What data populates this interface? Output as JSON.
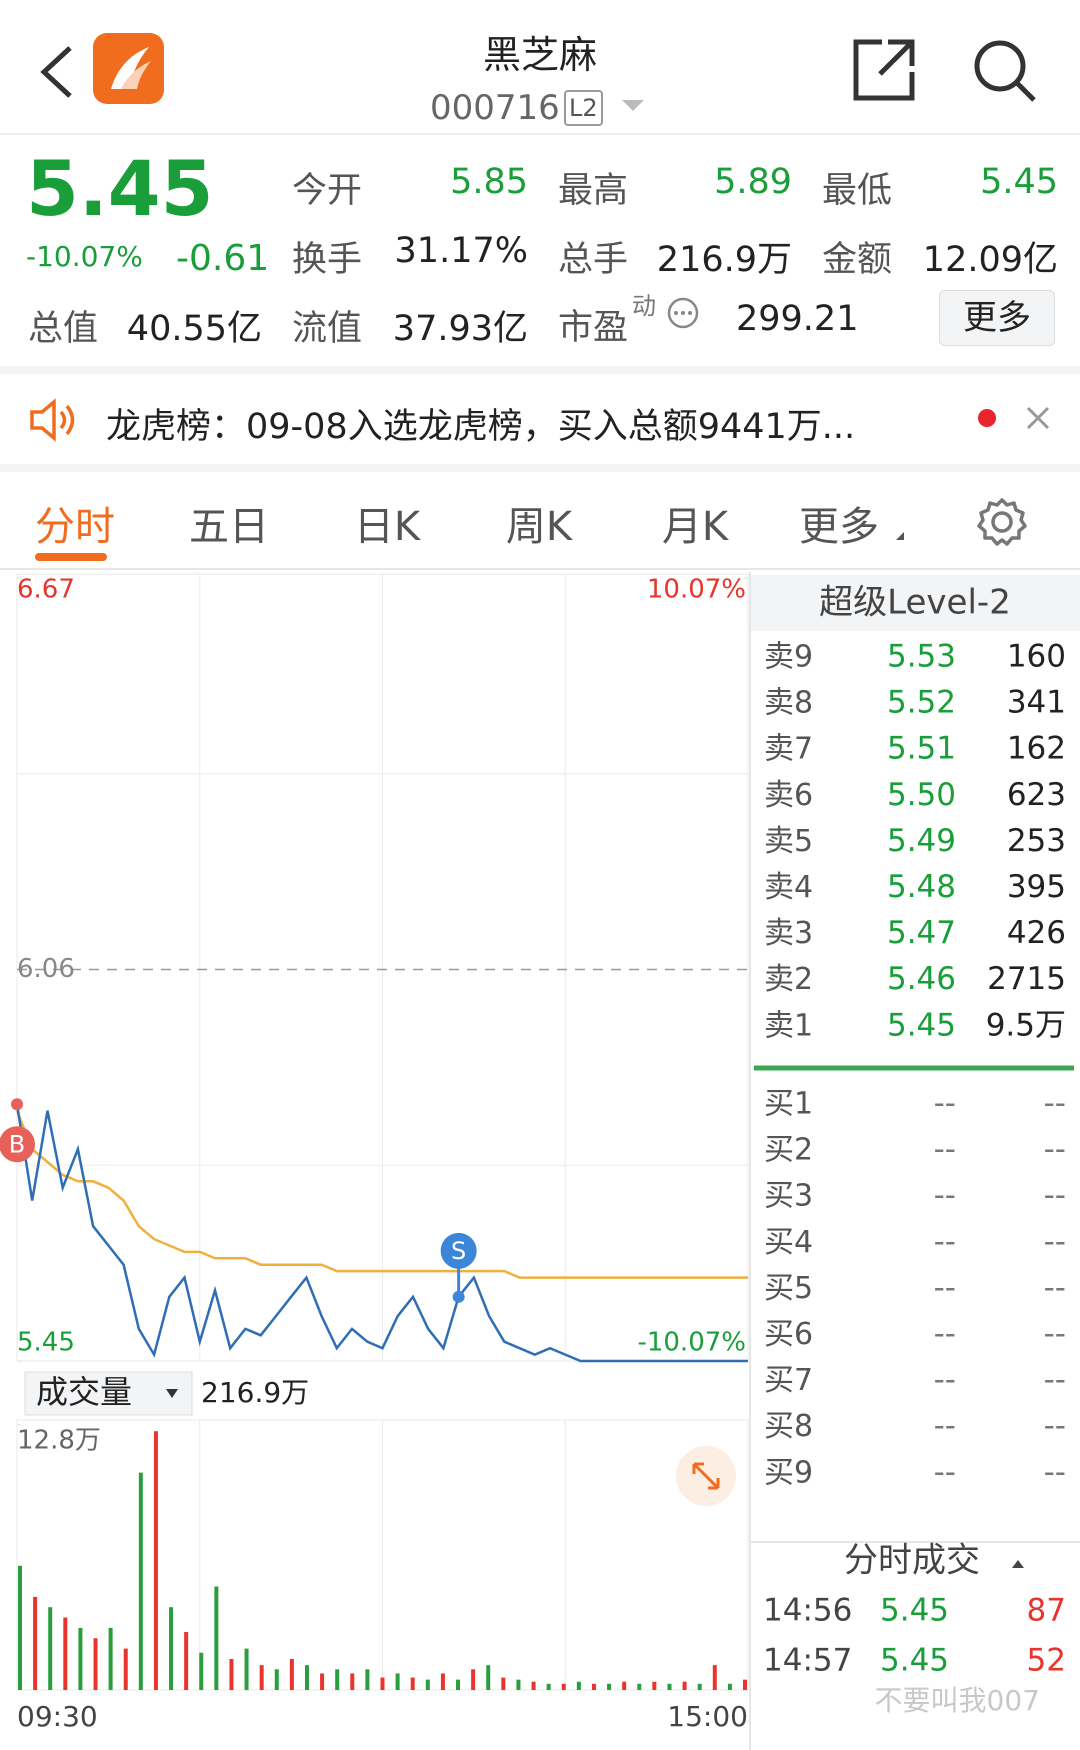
{
  "header": {
    "title": "黑芝麻",
    "code": "000716",
    "badge": "L2"
  },
  "quote": {
    "price": "5.45",
    "change_pct": "-10.07%",
    "change": "-0.61",
    "stats": [
      {
        "label": "今开",
        "value": "5.85"
      },
      {
        "label": "最高",
        "value": "5.89"
      },
      {
        "label": "最低",
        "value": "5.45"
      },
      {
        "label": "换手",
        "value": "31.17%"
      },
      {
        "label": "总手",
        "value": "216.9万"
      },
      {
        "label": "金额",
        "value": "12.09亿"
      },
      {
        "label": "总值",
        "value": "40.55亿"
      },
      {
        "label": "流值",
        "value": "37.93亿"
      }
    ],
    "pe": {
      "label": "市盈",
      "note": "动",
      "value": "299.21"
    },
    "more": "更多"
  },
  "notice": {
    "text": "龙虎榜：09-08入选龙虎榜，买入总额9441万..."
  },
  "tabs": [
    "分时",
    "五日",
    "日K",
    "周K",
    "月K",
    "更多"
  ],
  "chart_data": [
    {
      "type": "line",
      "series": [
        {
          "color": "#2f6db5",
          "values": [
            5.85,
            5.7,
            5.84,
            5.72,
            5.78,
            5.66,
            5.63,
            5.6,
            5.5,
            5.46,
            5.55,
            5.58,
            5.48,
            5.56,
            5.47,
            5.5,
            5.49,
            5.52,
            5.55,
            5.58,
            5.52,
            5.47,
            5.5,
            5.48,
            5.47,
            5.52,
            5.55,
            5.5,
            5.47,
            5.55,
            5.58,
            5.52,
            5.48,
            5.47,
            5.46,
            5.47,
            5.46,
            5.45,
            5.45,
            5.45,
            5.45,
            5.45,
            5.45,
            5.45,
            5.45,
            5.45,
            5.45,
            5.45,
            5.45
          ]
        },
        {
          "color": "#f0b13c",
          "values": [
            5.84,
            5.78,
            5.76,
            5.74,
            5.73,
            5.73,
            5.72,
            5.7,
            5.66,
            5.64,
            5.63,
            5.62,
            5.62,
            5.61,
            5.61,
            5.61,
            5.6,
            5.6,
            5.6,
            5.6,
            5.6,
            5.59,
            5.59,
            5.59,
            5.59,
            5.59,
            5.59,
            5.59,
            5.59,
            5.59,
            5.59,
            5.59,
            5.59,
            5.58,
            5.58,
            5.58,
            5.58,
            5.58,
            5.58,
            5.58,
            5.58,
            5.58,
            5.58,
            5.58,
            5.58,
            5.58,
            5.58,
            5.58,
            5.58
          ]
        }
      ],
      "ylim": [
        5.45,
        6.67
      ],
      "yticks": [
        6.67,
        6.06,
        5.45
      ],
      "y2lim": [
        -10.07,
        10.07
      ],
      "y2ticks": [
        {
          "value": 10.07,
          "label": "10.07%"
        },
        {
          "value": -10.07,
          "label": "-10.07%"
        }
      ],
      "annotations": [
        "B",
        "S"
      ]
    },
    {
      "type": "bar",
      "selector": "成交量",
      "total": "216.9万",
      "values": [
        60000,
        45000,
        40000,
        35000,
        30000,
        25000,
        30000,
        20000,
        105000,
        125000,
        40000,
        28000,
        18000,
        50000,
        15000,
        20000,
        12000,
        10000,
        15000,
        12000,
        8000,
        10000,
        8000,
        10000,
        6000,
        8000,
        6000,
        5000,
        8000,
        5000,
        10000,
        12000,
        6000,
        5000,
        4000,
        3000,
        3000,
        4000,
        3000,
        3000,
        4000,
        3000,
        4000,
        3000,
        4000,
        3000,
        12000,
        3000,
        5000
      ],
      "colors": [
        "#2a9d3f",
        "#e8342c",
        "#2a9d3f",
        "#e8342c",
        "#2a9d3f",
        "#e8342c",
        "#2a9d3f",
        "#e8342c",
        "#2a9d3f",
        "#e8342c",
        "#2a9d3f",
        "#e8342c",
        "#2a9d3f",
        "#2a9d3f",
        "#e8342c",
        "#2a9d3f",
        "#e8342c",
        "#2a9d3f",
        "#e8342c",
        "#2a9d3f",
        "#e8342c",
        "#2a9d3f",
        "#e8342c",
        "#2a9d3f",
        "#e8342c",
        "#2a9d3f",
        "#e8342c",
        "#2a9d3f",
        "#e8342c",
        "#2a9d3f",
        "#e8342c",
        "#2a9d3f",
        "#e8342c",
        "#2a9d3f",
        "#e8342c",
        "#2a9d3f",
        "#e8342c",
        "#2a9d3f",
        "#e8342c",
        "#2a9d3f",
        "#e8342c",
        "#2a9d3f",
        "#e8342c",
        "#2a9d3f",
        "#e8342c",
        "#2a9d3f",
        "#e8342c",
        "#2a9d3f",
        "#e8342c"
      ],
      "ylim": [
        0,
        128000
      ],
      "yticks": [
        {
          "value": 128000,
          "label": "12.8万"
        }
      ],
      "x_labels": [
        "09:30",
        "15:00"
      ]
    }
  ],
  "order_book": {
    "title": "超级Level-2",
    "asks": [
      {
        "label": "卖9",
        "price": "5.53",
        "volume": "160"
      },
      {
        "label": "卖8",
        "price": "5.52",
        "volume": "341"
      },
      {
        "label": "卖7",
        "price": "5.51",
        "volume": "162"
      },
      {
        "label": "卖6",
        "price": "5.50",
        "volume": "623"
      },
      {
        "label": "卖5",
        "price": "5.49",
        "volume": "253"
      },
      {
        "label": "卖4",
        "price": "5.48",
        "volume": "395"
      },
      {
        "label": "卖3",
        "price": "5.47",
        "volume": "426"
      },
      {
        "label": "卖2",
        "price": "5.46",
        "volume": "2715"
      },
      {
        "label": "卖1",
        "price": "5.45",
        "volume": "9.5万"
      }
    ],
    "bids": [
      {
        "label": "买1",
        "price": "--",
        "volume": "--"
      },
      {
        "label": "买2",
        "price": "--",
        "volume": "--"
      },
      {
        "label": "买3",
        "price": "--",
        "volume": "--"
      },
      {
        "label": "买4",
        "price": "--",
        "volume": "--"
      },
      {
        "label": "买5",
        "price": "--",
        "volume": "--"
      },
      {
        "label": "买6",
        "price": "--",
        "volume": "--"
      },
      {
        "label": "买7",
        "price": "--",
        "volume": "--"
      },
      {
        "label": "买8",
        "price": "--",
        "volume": "--"
      },
      {
        "label": "买9",
        "price": "--",
        "volume": "--"
      }
    ]
  },
  "trades": {
    "title": "分时成交",
    "rows": [
      {
        "time": "14:56",
        "price": "5.45",
        "volume": "87"
      },
      {
        "time": "14:57",
        "price": "5.45",
        "volume": "52"
      }
    ]
  },
  "watermark": "不要叫我007"
}
